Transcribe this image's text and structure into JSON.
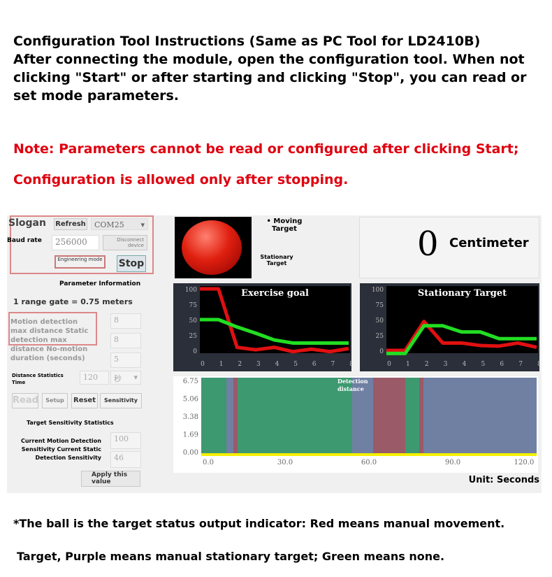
{
  "header": {
    "line1": "Configuration Tool Instructions (Same as PC Tool for LD2410B)",
    "line2": "After connecting the module, open the configuration tool. When not",
    "line3": "clicking \"Start\" or after starting and clicking \"Stop\", you can read or",
    "line4": "set mode parameters."
  },
  "note": {
    "line1": "Note: Parameters cannot be read or configured after clicking Start;",
    "line2": "Configuration is allowed only after stopping."
  },
  "tool": {
    "slogan": "Slogan",
    "refresh": "Refresh",
    "port": "COM25",
    "baud_label": "Baud rate",
    "baud": "256000",
    "disconnect": "Disconnect device",
    "engineering": "Engineering mode",
    "stop": "Stop",
    "param_title": "Parameter Information",
    "range_gate": "1 range gate = 0.75 meters",
    "param_labels": "Motion detection max distance Static detection max distance No-motion duration (seconds)",
    "motion_max": "8",
    "static_max": "8",
    "no_motion": "5",
    "stats_time_label": "Distance Statistics Time",
    "stats_time": "120",
    "stats_unit": "秒",
    "read": "Read",
    "setup": "Setup",
    "reset": "Reset",
    "sensitivity": "Sensitivity",
    "sens_title": "Target Sensitivity Statistics",
    "sens_labels": "Current Motion Detection Sensitivity Current Static Detection Sensitivity",
    "motion_sens": "100",
    "static_sens": "46",
    "apply": "Apply this value",
    "moving": "Moving Target",
    "stationary": "Stationary Target",
    "distance": "0",
    "distance_unit": "Centimeter",
    "unit": "Unit: Seconds",
    "indicator_color": "#e02010"
  },
  "chart_data": [
    {
      "type": "line",
      "title": "Exercise goal",
      "x": [
        0,
        1,
        2,
        3,
        4,
        5,
        6,
        7,
        8
      ],
      "ylim": [
        0,
        100
      ],
      "yticks": [
        "100",
        "75",
        "50",
        "25",
        "0"
      ],
      "series": [
        {
          "color": "#e01010",
          "values": [
            100,
            100,
            5,
            1,
            5,
            -2,
            2,
            -2,
            3
          ]
        },
        {
          "color": "#22dd22",
          "values": [
            50,
            50,
            38,
            28,
            17,
            12,
            12,
            12,
            12
          ]
        }
      ]
    },
    {
      "type": "line",
      "title": "Stationary Target",
      "x": [
        0,
        1,
        2,
        3,
        4,
        5,
        6,
        7,
        8
      ],
      "ylim": [
        0,
        100
      ],
      "yticks": [
        "100",
        "75",
        "50",
        "25",
        "0"
      ],
      "series": [
        {
          "color": "#e01010",
          "values": [
            0,
            0,
            47,
            12,
            12,
            8,
            7,
            12,
            5
          ]
        },
        {
          "color": "#22dd22",
          "values": [
            -5,
            -5,
            40,
            40,
            30,
            30,
            19,
            19,
            19
          ]
        }
      ]
    },
    {
      "type": "area",
      "title": "Detection distance",
      "xlim": [
        0,
        120
      ],
      "xticks": [
        "0.0",
        "30.0",
        "60.0",
        "90.0",
        "120.0"
      ],
      "yticks": [
        "6.75",
        "5.06",
        "3.38",
        "1.69",
        "0.00"
      ],
      "segments": [
        {
          "from": 0,
          "to": 9,
          "state": "none"
        },
        {
          "from": 9,
          "to": 11.5,
          "state": "stationary"
        },
        {
          "from": 11.5,
          "to": 13,
          "state": "moving"
        },
        {
          "from": 13,
          "to": 54,
          "state": "none"
        },
        {
          "from": 54,
          "to": 61.5,
          "state": "stationary"
        },
        {
          "from": 61.5,
          "to": 73,
          "state": "moving"
        },
        {
          "from": 73,
          "to": 78,
          "state": "none"
        },
        {
          "from": 78,
          "to": 79.5,
          "state": "moving"
        },
        {
          "from": 79.5,
          "to": 120,
          "state": "stationary"
        }
      ],
      "colors": {
        "none": "#3d9970",
        "stationary": "#6f80a3",
        "moving": "#9a5a68"
      }
    }
  ],
  "footer": {
    "line1": "*The ball is the target status output indicator: Red means manual movement.",
    "line2": "Target, Purple means manual stationary target; Green means none."
  }
}
